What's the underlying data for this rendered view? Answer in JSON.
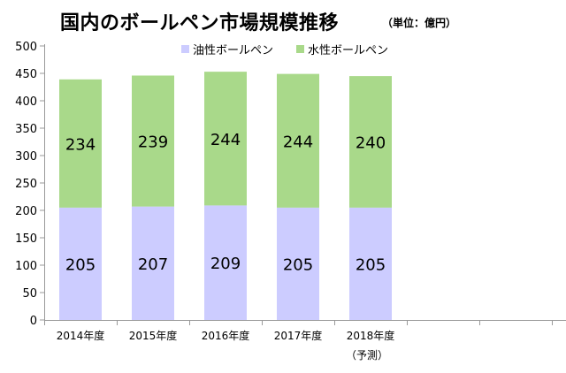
{
  "chart_data": {
    "type": "bar",
    "stacked": true,
    "title": "国内のボールペン市場規模推移",
    "subtitle": "（単位：億円）",
    "categories": [
      "2014年度",
      "2015年度",
      "2016年度",
      "2017年度",
      "2018年度"
    ],
    "category_notes": [
      "",
      "",
      "",
      "",
      "（予測）"
    ],
    "series": [
      {
        "name": "油性ボールペン",
        "color": "#ccccff",
        "values": [
          205,
          207,
          209,
          205,
          205
        ]
      },
      {
        "name": "水性ボールペン",
        "color": "#a9d98a",
        "values": [
          234,
          239,
          244,
          244,
          240
        ]
      }
    ],
    "ylim": [
      0,
      500
    ],
    "yticks": [
      "0",
      "50",
      "100",
      "150",
      "200",
      "250",
      "300",
      "350",
      "400",
      "450",
      "500"
    ],
    "legend_position": "top",
    "grid": false
  }
}
